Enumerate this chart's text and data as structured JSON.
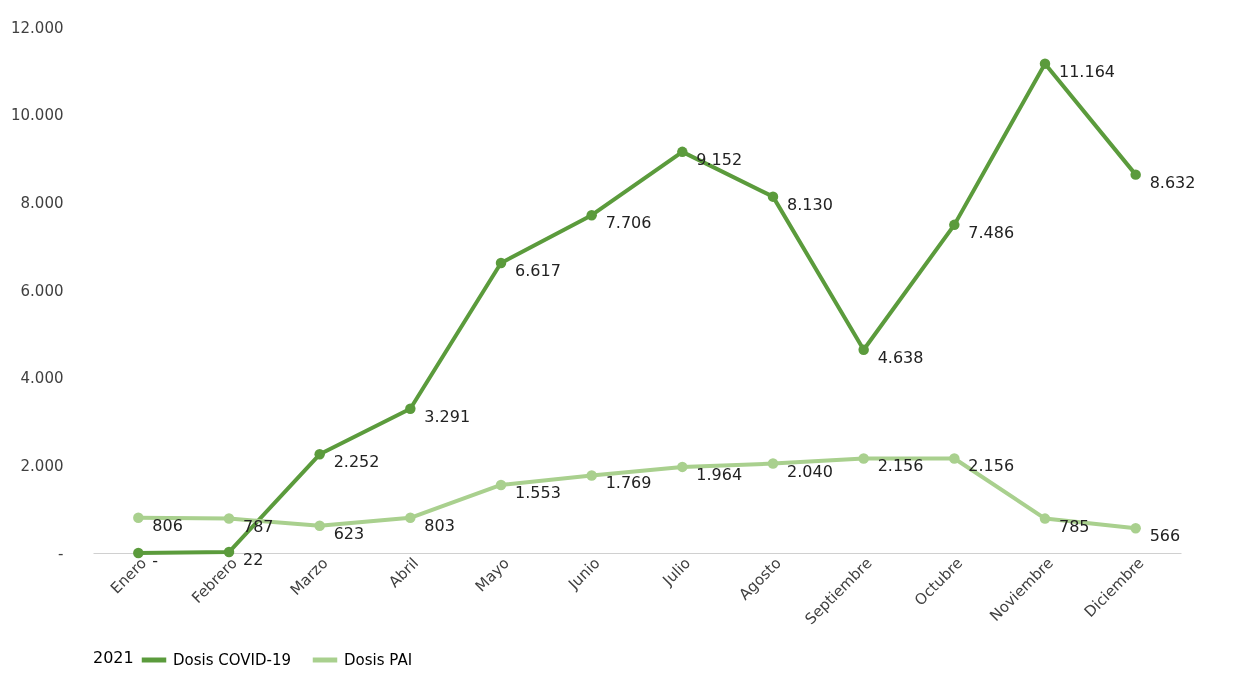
{
  "chart_data": {
    "type": "line",
    "categories": [
      "Enero",
      "Febrero",
      "Marzo",
      "Abril",
      "Mayo",
      "Junio",
      "Julio",
      "Agosto",
      "Septiembre",
      "Octubre",
      "Noviembre",
      "Diciembre"
    ],
    "series": [
      {
        "name": "Dosis COVID-19",
        "color": "#5b9b3c",
        "values": [
          0,
          22,
          2252,
          3291,
          6617,
          7706,
          9152,
          8130,
          4638,
          7486,
          11164,
          8632
        ],
        "value_labels": [
          "-",
          "22",
          "2.252",
          "3.291",
          "6.617",
          "7.706",
          "9.152",
          "8.130",
          "4.638",
          "7.486",
          "11.164",
          "8.632"
        ]
      },
      {
        "name": "Dosis PAI",
        "color": "#a9d08e",
        "values": [
          806,
          787,
          623,
          803,
          1553,
          1769,
          1964,
          2040,
          2156,
          2156,
          785,
          566
        ],
        "value_labels": [
          "806",
          "787",
          "623",
          "803",
          "1.553",
          "1.769",
          "1.964",
          "2.040",
          "2.156",
          "2.156",
          "785",
          "566"
        ]
      }
    ],
    "ylim": [
      0,
      12000
    ],
    "yticks": [
      {
        "value": 0,
        "label": "-"
      },
      {
        "value": 2000,
        "label": "2.000"
      },
      {
        "value": 4000,
        "label": "4.000"
      },
      {
        "value": 6000,
        "label": "6.000"
      },
      {
        "value": 8000,
        "label": "8.000"
      },
      {
        "value": 10000,
        "label": "10.000"
      },
      {
        "value": 12000,
        "label": "12.000"
      }
    ],
    "grid": false,
    "legend": "bottom",
    "legend_title": "2021",
    "marker": "circle",
    "line_style": "solid"
  }
}
